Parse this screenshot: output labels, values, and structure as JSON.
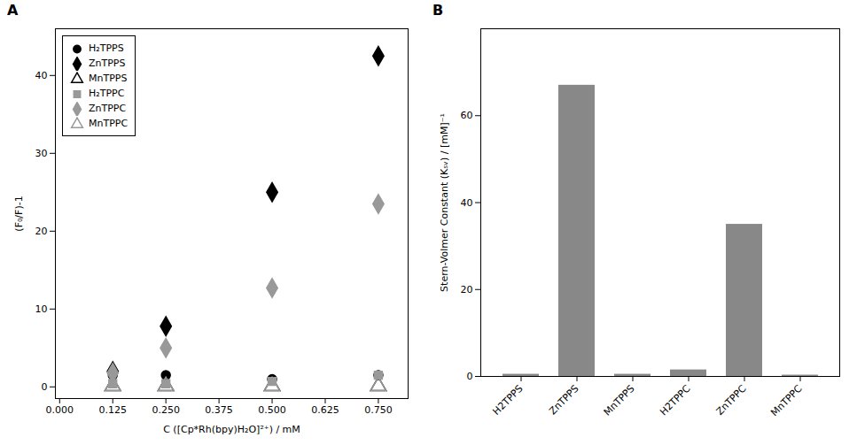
{
  "chart_data": [
    {
      "type": "scatter",
      "title": "A",
      "xlabel": "C ([Cp*Rh(bpy)H₂O]²⁺) / mM",
      "ylabel": "(F₀/F)-1",
      "xlim": [
        -0.01,
        0.82
      ],
      "ylim": [
        -1.5,
        46
      ],
      "xticks": [
        {
          "value": 0.0,
          "label": "0.000"
        },
        0.125,
        {
          "value": 0.25,
          "label": "0.250"
        },
        0.375,
        {
          "value": 0.5,
          "label": "0.500"
        },
        0.625,
        {
          "value": 0.75,
          "label": "0.750"
        }
      ],
      "yticks": [
        0,
        10,
        20,
        30,
        40
      ],
      "grid": false,
      "legend": "upper left",
      "series": [
        {
          "name": "H₂TPPS",
          "color": "#000000",
          "marker": "circle",
          "x": [
            0.125,
            0.25,
            0.5,
            0.75
          ],
          "values": [
            1.5,
            1.5,
            1.0,
            1.5
          ]
        },
        {
          "name": "ZnTPPS",
          "color": "#000000",
          "marker": "diamond",
          "x": [
            0.125,
            0.25,
            0.5,
            0.75
          ],
          "values": [
            2.0,
            7.8,
            25.0,
            42.5
          ]
        },
        {
          "name": "MnTPPS",
          "color": "#000000",
          "marker": "triangle-open",
          "x": [
            0.125,
            0.25,
            0.5,
            0.75
          ],
          "values": [
            0.1,
            0.1,
            0.1,
            0.1
          ]
        },
        {
          "name": "H₂TPPC",
          "color": "#999999",
          "marker": "square",
          "x": [
            0.125,
            0.25,
            0.5,
            0.75
          ],
          "values": [
            0.4,
            0.4,
            0.7,
            1.5
          ]
        },
        {
          "name": "ZnTPPC",
          "color": "#999999",
          "marker": "diamond",
          "x": [
            0.125,
            0.25,
            0.5,
            0.75
          ],
          "values": [
            1.8,
            5.0,
            12.7,
            23.5
          ]
        },
        {
          "name": "MnTPPC",
          "color": "#999999",
          "marker": "triangle-open",
          "x": [
            0.125,
            0.25,
            0.5,
            0.75
          ],
          "values": [
            0.1,
            0.1,
            0.1,
            0.1
          ]
        }
      ]
    },
    {
      "type": "bar",
      "title": "B",
      "ylabel": "Stern-Volmer Constant (Kₛᵥ) / [mM]⁻¹",
      "categories": [
        "H2TPPS",
        "ZnTPPS",
        "MnTPPS",
        "H2TPPC",
        "ZnTPPC",
        "MnTPPC"
      ],
      "values": [
        0.5,
        67.0,
        0.5,
        1.5,
        35.0,
        0.3
      ],
      "color": "#888888",
      "ylim": [
        0,
        80
      ],
      "yticks": [
        0,
        20,
        40,
        60
      ],
      "grid": false
    }
  ]
}
